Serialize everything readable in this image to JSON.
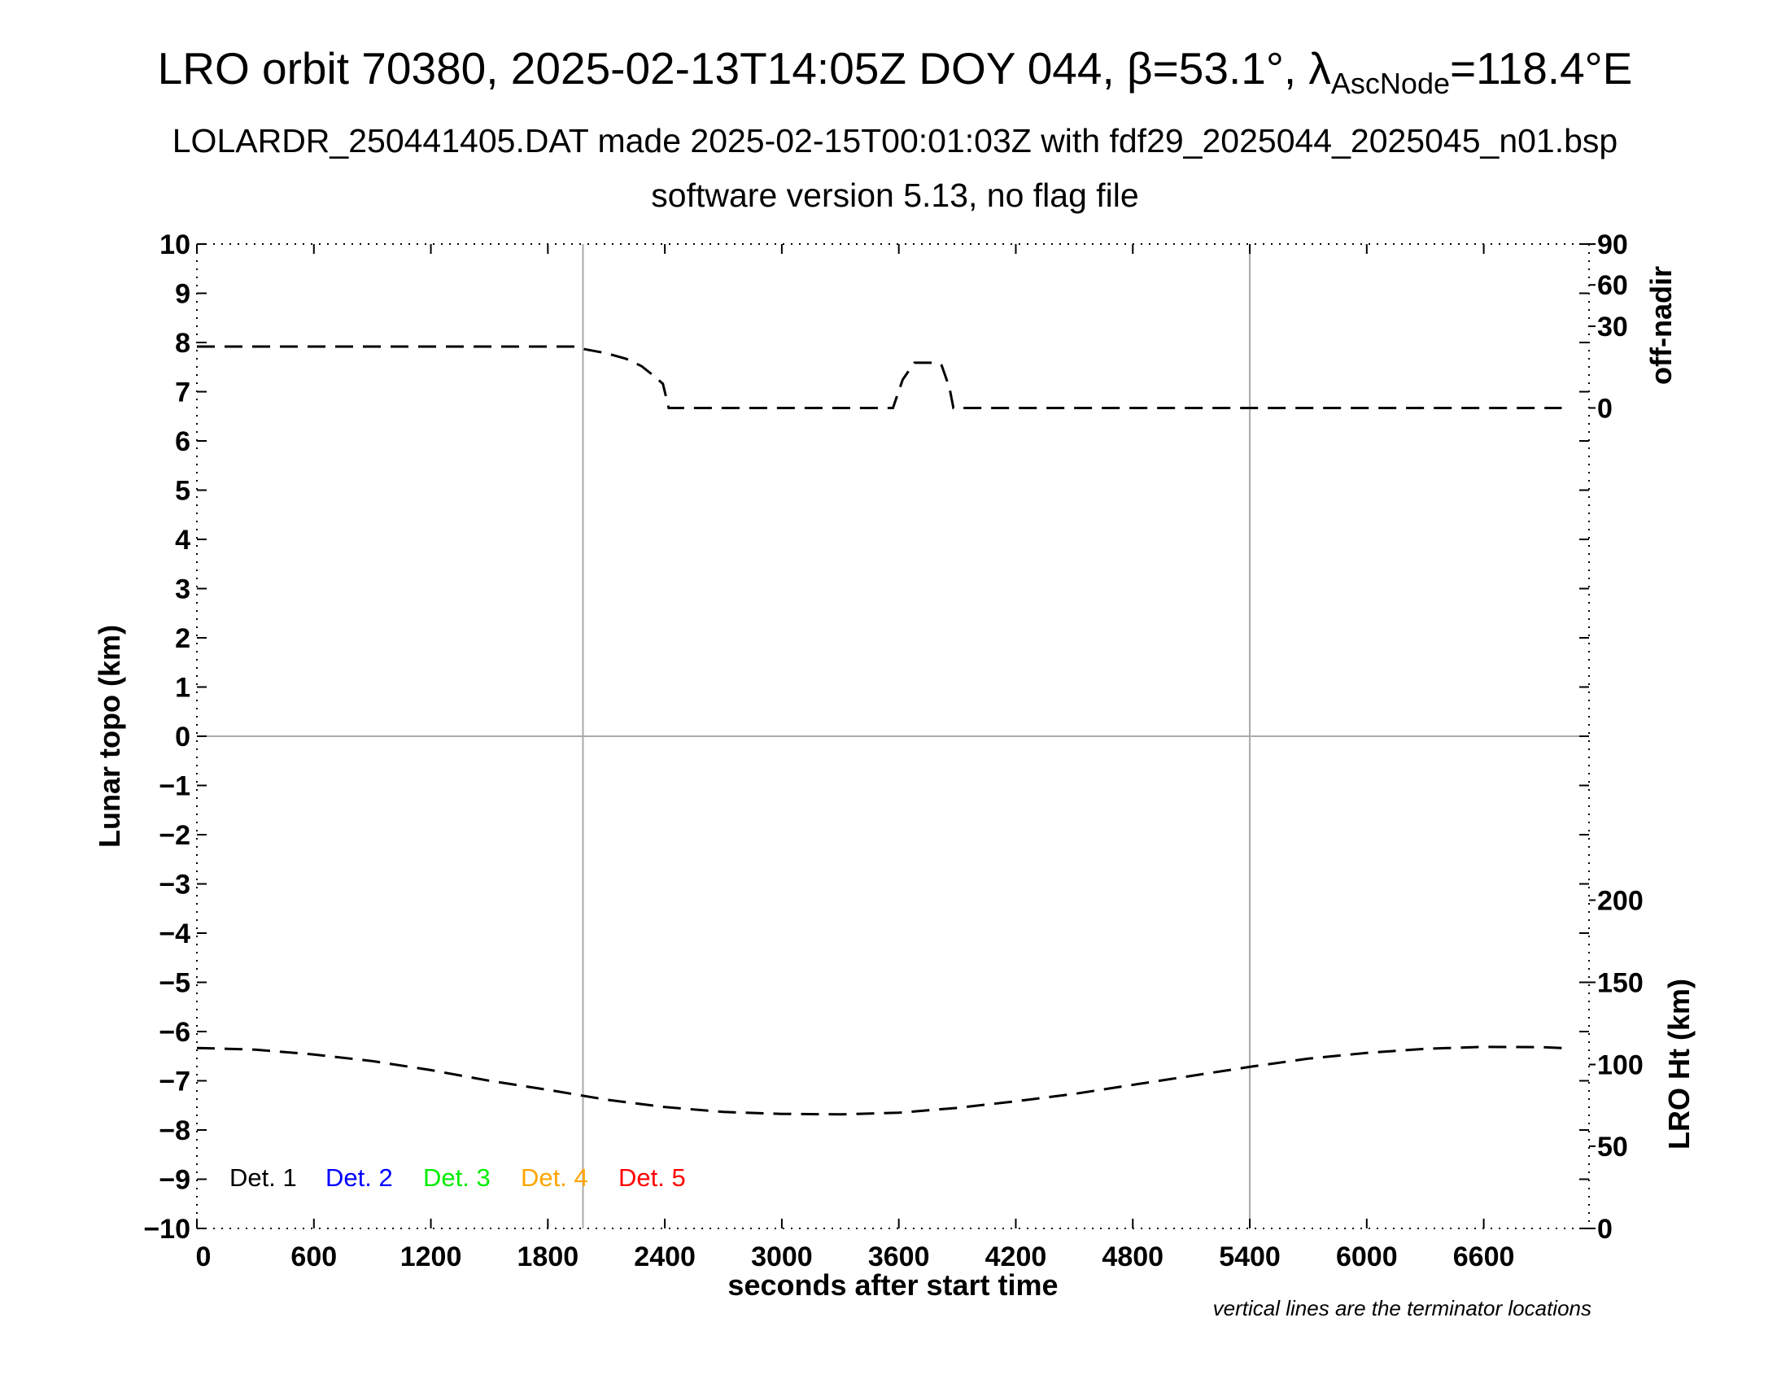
{
  "header": {
    "title_main": "LRO orbit 70380, 2025-02-13T14:05Z DOY 044, β=53.1°, λ",
    "title_sub": "AscNode",
    "title_tail": "=118.4°E",
    "subtitle1": "LOLARDR_250441405.DAT made 2025-02-15T00:01:03Z with fdf29_2025044_2025045_n01.bsp",
    "subtitle2": "software version 5.13, no flag file"
  },
  "chart_data": {
    "type": "line",
    "xlabel": "seconds after start time",
    "ylabel": "Lunar topo (km)",
    "xlim": [
      0,
      7140
    ],
    "ylim": [
      -10,
      10
    ],
    "x_ticks": [
      0,
      600,
      1200,
      1800,
      2400,
      3000,
      3600,
      4200,
      4800,
      5400,
      6000,
      6600
    ],
    "y_ticks": [
      10,
      9,
      8,
      7,
      6,
      5,
      4,
      3,
      2,
      1,
      0,
      -1,
      -2,
      -3,
      -4,
      -5,
      -6,
      -7,
      -8,
      -9,
      -10
    ],
    "y_tick_labels": [
      "10",
      "9",
      "8",
      "7",
      "6",
      "5",
      "4",
      "3",
      "2",
      "1",
      "0",
      "−1",
      "−2",
      "−3",
      "−4",
      "−5",
      "−6",
      "−7",
      "−8",
      "−9",
      "−10"
    ],
    "right_axis_top": {
      "label": "off-nadir",
      "ticks": [
        0,
        30,
        60,
        90
      ],
      "tick_primary_positions": [
        6.67,
        8.33,
        9.17,
        10
      ]
    },
    "right_axis_bottom": {
      "label": "LRO Ht (km)",
      "ticks": [
        0,
        50,
        100,
        150,
        200
      ],
      "tick_primary_positions": [
        -10,
        -8.33,
        -6.67,
        -5,
        -3.33
      ]
    },
    "terminator_lines_x": [
      1980,
      5400
    ],
    "legend": [
      {
        "label": "Det. 1",
        "color": "#000000"
      },
      {
        "label": "Det. 2",
        "color": "#0000ff"
      },
      {
        "label": "Det. 3",
        "color": "#00ee00"
      },
      {
        "label": "Det. 4",
        "color": "#ffa500"
      },
      {
        "label": "Det. 5",
        "color": "#ff0000"
      }
    ],
    "series": [
      {
        "axis": "off-nadir",
        "style": "dashed",
        "color": "#000000",
        "points": [
          [
            0,
            22
          ],
          [
            1940,
            22
          ],
          [
            1990,
            21
          ],
          [
            2100,
            19.5
          ],
          [
            2200,
            17.5
          ],
          [
            2280,
            14.8
          ],
          [
            2340,
            11.5
          ],
          [
            2390,
            8.5
          ],
          [
            2420,
            0
          ],
          [
            3560,
            0
          ],
          [
            3570,
            0
          ],
          [
            3590,
            4
          ],
          [
            3620,
            10
          ],
          [
            3680,
            16
          ],
          [
            3750,
            16
          ],
          [
            3800,
            16
          ],
          [
            3820,
            15
          ],
          [
            3860,
            7
          ],
          [
            3880,
            0
          ],
          [
            7000,
            0
          ]
        ]
      },
      {
        "axis": "LRO Ht",
        "style": "dashed",
        "color": "#000000",
        "points": [
          [
            0,
            110
          ],
          [
            300,
            109
          ],
          [
            600,
            106
          ],
          [
            900,
            102
          ],
          [
            1200,
            96.5
          ],
          [
            1500,
            90
          ],
          [
            1800,
            84.5
          ],
          [
            2100,
            78.5
          ],
          [
            2400,
            74
          ],
          [
            2700,
            71
          ],
          [
            3000,
            69.8
          ],
          [
            3300,
            69.5
          ],
          [
            3600,
            70.5
          ],
          [
            3900,
            73.5
          ],
          [
            4200,
            77.5
          ],
          [
            4500,
            82
          ],
          [
            4800,
            87.5
          ],
          [
            5100,
            93
          ],
          [
            5400,
            98.5
          ],
          [
            5700,
            103.5
          ],
          [
            6000,
            107
          ],
          [
            6300,
            109.5
          ],
          [
            6600,
            110.7
          ],
          [
            6900,
            110.5
          ],
          [
            7000,
            110
          ]
        ]
      }
    ],
    "grid": false
  },
  "footnote": "vertical lines are the terminator locations"
}
